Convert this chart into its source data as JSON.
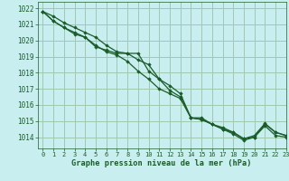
{
  "title": "Graphe pression niveau de la mer (hPa)",
  "bg_color": "#c8eef0",
  "grid_color": "#a0c8b0",
  "line_color": "#1a5c2a",
  "marker_color": "#1a5c2a",
  "xlim": [
    -0.5,
    23
  ],
  "ylim": [
    1013.3,
    1022.4
  ],
  "yticks": [
    1014,
    1015,
    1016,
    1017,
    1018,
    1019,
    1020,
    1021,
    1022
  ],
  "xticks": [
    0,
    1,
    2,
    3,
    4,
    5,
    6,
    7,
    8,
    9,
    10,
    11,
    12,
    13,
    14,
    15,
    16,
    17,
    18,
    19,
    20,
    21,
    22,
    23
  ],
  "series1": [
    1021.8,
    1021.5,
    1021.1,
    1020.8,
    1020.5,
    1020.2,
    1019.7,
    1019.3,
    1019.2,
    1019.2,
    1018.1,
    1017.6,
    1017.2,
    1016.7,
    1015.2,
    1015.1,
    1014.8,
    1014.5,
    1014.3,
    1013.9,
    1014.1,
    1014.85,
    1014.3,
    1014.1
  ],
  "series2": [
    1021.8,
    1021.2,
    1020.8,
    1020.4,
    1020.2,
    1019.7,
    1019.3,
    1019.1,
    1018.7,
    1018.1,
    1017.6,
    1017.0,
    1016.7,
    1016.4,
    1015.2,
    1015.1,
    1014.8,
    1014.5,
    1014.2,
    1013.8,
    1014.0,
    1014.7,
    1014.1,
    1014.0
  ],
  "series3": [
    1021.8,
    1021.2,
    1020.8,
    1020.5,
    1020.2,
    1019.6,
    1019.4,
    1019.2,
    1019.2,
    1018.8,
    1018.5,
    1017.6,
    1016.9,
    1016.5,
    1015.2,
    1015.2,
    1014.8,
    1014.6,
    1014.3,
    1013.9,
    1014.0,
    1014.8,
    1014.3,
    1014.1
  ]
}
